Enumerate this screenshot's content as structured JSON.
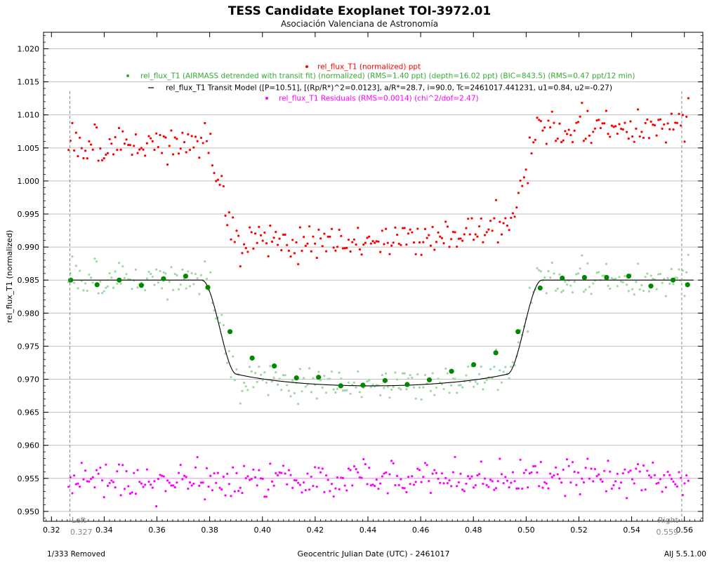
{
  "chart_data": {
    "type": "scatter",
    "title": "TESS Candidate Exoplanet TOI-3972.01",
    "subtitle": "Asociación Valenciana de Astronomía",
    "xlabel": "Geocentric Julian Date (UTC) - 2461017",
    "ylabel": "rel_flux_T1 (normalized)",
    "xlim": [
      0.317,
      0.567
    ],
    "ylim": [
      0.9485,
      1.0225
    ],
    "x_ticks": [
      "0.32",
      "0.34",
      "0.36",
      "0.38",
      "0.40",
      "0.42",
      "0.44",
      "0.46",
      "0.48",
      "0.50",
      "0.52",
      "0.54",
      "0.56"
    ],
    "y_ticks": [
      "1.020",
      "1.015",
      "1.010",
      "1.005",
      "1.000",
      "0.995",
      "0.990",
      "0.985",
      "0.980",
      "0.975",
      "0.970",
      "0.965",
      "0.960",
      "0.955",
      "0.950"
    ],
    "grid": "horizontal",
    "legend_placement": "top-center",
    "model": {
      "period_label": "P=10.51",
      "rp_rs_sq": 0.0123,
      "a_rs": 28.7,
      "inclination": 90.0,
      "tc": 2461017.441231,
      "u1": 0.84,
      "u2": -0.27,
      "baseline": 0.985,
      "depth": 0.016,
      "t_ingress_start": 0.377,
      "t_egress_end": 0.506
    },
    "binned_points": {
      "x": [
        0.3273,
        0.3373,
        0.3457,
        0.3541,
        0.3625,
        0.3709,
        0.3793,
        0.3877,
        0.3961,
        0.4045,
        0.4129,
        0.4213,
        0.4297,
        0.4381,
        0.4465,
        0.4549,
        0.4633,
        0.4717,
        0.4801,
        0.4885,
        0.4969,
        0.5053,
        0.5137,
        0.5221,
        0.5305,
        0.5389,
        0.5473,
        0.5557,
        0.5612
      ],
      "y": [
        0.985,
        0.9843,
        0.985,
        0.9842,
        0.9852,
        0.9856,
        0.9839,
        0.9772,
        0.9732,
        0.972,
        0.9702,
        0.9703,
        0.969,
        0.9691,
        0.9698,
        0.9692,
        0.9699,
        0.9712,
        0.9722,
        0.974,
        0.9772,
        0.9838,
        0.9853,
        0.9854,
        0.9854,
        0.9856,
        0.9841,
        0.985,
        0.9843
      ]
    },
    "series": [
      {
        "name": "rel_flux_T1 (normalized) ppt",
        "color": "#ff0000",
        "offset": 0.02,
        "kind": "raw"
      },
      {
        "name": "rel_flux_T1 (AIRMASS detrended with transit fit) (normalized) (RMS=1.40 ppt) (depth=16.02 ppt) (BIC=843.5) (RMS=0.47 ppt/12 min)",
        "color": "#33aa33",
        "offset": 0.0,
        "kind": "detrended"
      },
      {
        "name": "rel_flux_T1 Transit Model ([P=10.51], [(Rp/R*)^2=0.0123], a/R*=28.7, i=90.0, Tc=2461017.441231, u1=0.84, u2=-0.27)",
        "color": "#000000",
        "kind": "model"
      },
      {
        "name": "rel_flux_T1 Residuals (RMS=0.0014) (chi^2/dof=2.47)",
        "color": "#ff00ff",
        "offset": 0.955,
        "kind": "residuals"
      }
    ],
    "residual_baseline": 0.955,
    "markers": [
      {
        "label": "Left",
        "value": "0.327",
        "x": 0.327
      },
      {
        "label": "Right",
        "value": "0.559",
        "x": 0.559
      }
    ],
    "n_points": 333
  },
  "footer": {
    "removed": "1/333 Removed",
    "version": "AIJ 5.5.1.00"
  }
}
